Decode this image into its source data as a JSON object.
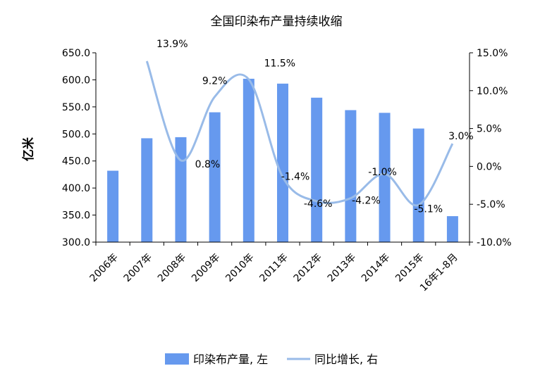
{
  "chart_data": {
    "type": "bar",
    "title": "全国印染布产量持续收缩",
    "xlabel": "",
    "ylabel": "亿米",
    "categories": [
      "2006年",
      "2007年",
      "2008年",
      "2009年",
      "2010年",
      "2011年",
      "2012年",
      "2013年",
      "2014年",
      "2015年",
      "16年1-8月"
    ],
    "ylim": [
      300,
      650
    ],
    "yticks": [
      "300.0",
      "350.0",
      "400.0",
      "450.0",
      "500.0",
      "550.0",
      "600.0",
      "650.0"
    ],
    "y2lim": [
      -10,
      15
    ],
    "y2ticks": [
      "-10.0%",
      "-5.0%",
      "0.0%",
      "5.0%",
      "10.0%",
      "15.0%"
    ],
    "series": [
      {
        "name": "印染布产量, 左",
        "type": "bar",
        "axis": "left",
        "color": "#6699ee",
        "values": [
          432,
          492,
          494,
          540,
          602,
          593,
          567,
          544,
          539,
          510,
          348
        ]
      },
      {
        "name": "同比增长, 右",
        "type": "line",
        "axis": "right",
        "color": "#99bbe8",
        "values": [
          null,
          13.9,
          0.8,
          9.2,
          11.5,
          -1.4,
          -4.6,
          -4.2,
          -1.0,
          -5.1,
          3.0
        ],
        "labels": [
          null,
          "13.9%",
          "0.8%",
          "9.2%",
          "11.5%",
          "-1.4%",
          "-4.6%",
          "-4.2%",
          "-1.0%",
          "-5.1%",
          "3.0%"
        ]
      }
    ],
    "legend": "bottom",
    "grid": false
  }
}
